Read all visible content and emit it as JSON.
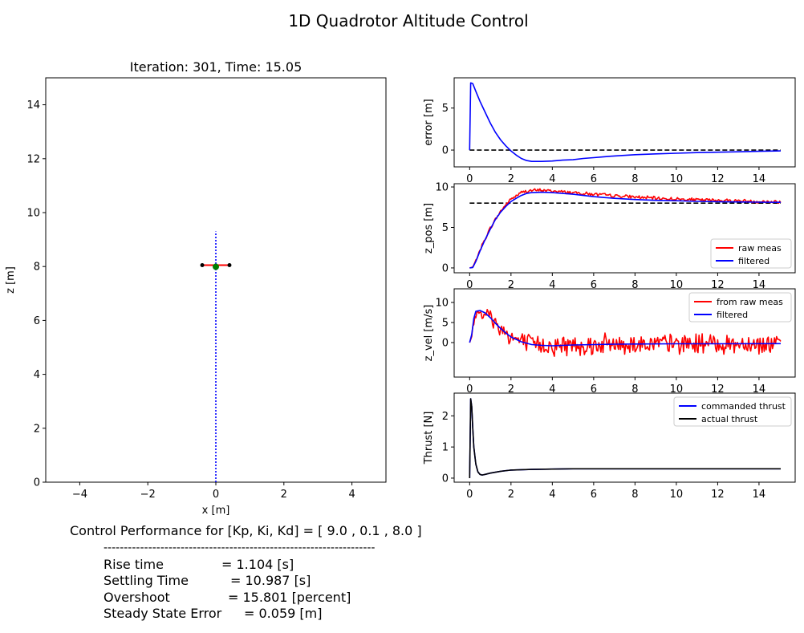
{
  "figure_title": "1D Quadrotor Altitude Control",
  "performance": {
    "header": "Control Performance for [Kp, Ki, Kd] = [ 9.0 , 0.1 , 8.0 ]",
    "separator": "-------------------------------------------------------------------",
    "rows": [
      {
        "label": "Rise time",
        "value": "= 1.104 [s]"
      },
      {
        "label": "Settling Time",
        "value": "= 10.987 [s]"
      },
      {
        "label": "Overshoot",
        "value": "= 15.801 [percent]"
      },
      {
        "label": "Steady State Error",
        "value": "= 0.059 [m]"
      }
    ]
  },
  "chart_data": [
    {
      "id": "anim",
      "type": "scatter",
      "title": "Iteration: 301, Time: 15.05",
      "xlabel": "x [m]",
      "ylabel": "z [m]",
      "xlim": [
        -5,
        5
      ],
      "ylim": [
        0,
        15
      ],
      "xticks": [
        -4,
        -2,
        0,
        2,
        4
      ],
      "yticks": [
        0,
        2,
        4,
        6,
        8,
        10,
        12,
        14
      ],
      "quadrotor": {
        "x": 0,
        "z": 8.05,
        "arm_half_width": 0.4
      },
      "trajectory": {
        "x": 0,
        "z_from": 0,
        "z_to": 9.3
      },
      "colors": {
        "arm": "#ff0000",
        "motors": "#000000",
        "body": "#008000",
        "trajectory": "#0000ff"
      }
    },
    {
      "id": "error",
      "type": "line",
      "ylabel": "error [m]",
      "xlim": [
        -0.75,
        15.75
      ],
      "ylim": [
        -2.0,
        8.6
      ],
      "xticks": [
        0,
        2,
        4,
        6,
        8,
        10,
        12,
        14
      ],
      "yticks": [
        0,
        5
      ],
      "reference": {
        "value": 0,
        "color": "#000000",
        "style": "dashed"
      },
      "series": [
        {
          "color": "#0000ff",
          "x": [
            0,
            0.05,
            0.15,
            0.3,
            0.5,
            0.75,
            1.0,
            1.25,
            1.5,
            1.75,
            2.0,
            2.25,
            2.5,
            2.75,
            3.0,
            3.5,
            4.0,
            4.5,
            5.0,
            5.5,
            6.0,
            6.5,
            7.0,
            8.0,
            9.0,
            10.0,
            11.0,
            12.0,
            13.0,
            14.0,
            15.05
          ],
          "y": [
            0,
            8.0,
            7.9,
            7.0,
            5.8,
            4.5,
            3.2,
            2.1,
            1.2,
            0.5,
            -0.1,
            -0.6,
            -1.0,
            -1.25,
            -1.35,
            -1.35,
            -1.3,
            -1.2,
            -1.15,
            -1.0,
            -0.9,
            -0.8,
            -0.7,
            -0.55,
            -0.45,
            -0.38,
            -0.3,
            -0.25,
            -0.2,
            -0.15,
            -0.1
          ]
        }
      ]
    },
    {
      "id": "zpos",
      "type": "line",
      "ylabel": "z_pos [m]",
      "xlim": [
        -0.75,
        15.75
      ],
      "ylim": [
        -0.6,
        10.4
      ],
      "xticks": [
        0,
        2,
        4,
        6,
        8,
        10,
        12,
        14
      ],
      "yticks": [
        0,
        5,
        10
      ],
      "reference": {
        "value": 8.0,
        "color": "#000000",
        "style": "dashed"
      },
      "legend": {
        "position": "lower-right",
        "entries": [
          "raw meas",
          "filtered"
        ]
      },
      "series": [
        {
          "name": "raw meas",
          "color": "#ff0000",
          "noise": 0.25,
          "x": [
            0,
            0.15,
            0.3,
            0.5,
            0.75,
            1.0,
            1.25,
            1.5,
            1.75,
            2.0,
            2.25,
            2.5,
            2.75,
            3.0,
            3.5,
            4.0,
            4.5,
            5.0,
            5.5,
            6.0,
            6.5,
            7.0,
            8.0,
            9.0,
            10.0,
            11.0,
            12.0,
            13.0,
            14.0,
            15.05
          ],
          "y": [
            0,
            0.1,
            0.9,
            2.2,
            3.6,
            4.9,
            6.0,
            7.0,
            7.8,
            8.5,
            8.9,
            9.3,
            9.5,
            9.55,
            9.6,
            9.5,
            9.4,
            9.3,
            9.2,
            9.1,
            9.0,
            8.9,
            8.75,
            8.6,
            8.5,
            8.4,
            8.35,
            8.3,
            8.2,
            8.15
          ]
        },
        {
          "name": "filtered",
          "color": "#0000ff",
          "x": [
            0,
            0.15,
            0.3,
            0.5,
            0.75,
            1.0,
            1.25,
            1.5,
            1.75,
            2.0,
            2.25,
            2.5,
            2.75,
            3.0,
            3.5,
            4.0,
            4.5,
            5.0,
            5.5,
            6.0,
            6.5,
            7.0,
            8.0,
            9.0,
            10.0,
            11.0,
            12.0,
            13.0,
            14.0,
            15.05
          ],
          "y": [
            0,
            0.05,
            0.8,
            2.1,
            3.5,
            4.8,
            6.0,
            6.9,
            7.6,
            8.2,
            8.6,
            8.95,
            9.2,
            9.3,
            9.35,
            9.3,
            9.2,
            9.1,
            8.95,
            8.8,
            8.7,
            8.6,
            8.45,
            8.35,
            8.3,
            8.22,
            8.18,
            8.15,
            8.12,
            8.1
          ]
        }
      ]
    },
    {
      "id": "zvel",
      "type": "line",
      "ylabel": "z_vel [m/s]",
      "xlim": [
        -0.75,
        15.75
      ],
      "ylim": [
        -8.6,
        13.4
      ],
      "xticks": [
        0,
        2,
        4,
        6,
        8,
        10,
        12,
        14
      ],
      "yticks": [
        0,
        5,
        10
      ],
      "legend": {
        "position": "top-right",
        "entries": [
          "from raw meas",
          "filtered"
        ]
      },
      "series": [
        {
          "name": "from raw meas",
          "color": "#ff0000",
          "noise": 3.0,
          "x": [
            0,
            0.1,
            0.2,
            0.3,
            0.5,
            0.75,
            1.0,
            1.25,
            1.5,
            1.75,
            2.0,
            2.5,
            3.0,
            3.5,
            4.0,
            5.0,
            6.0,
            7.0,
            8.0,
            10.0,
            12.0,
            15.05
          ],
          "y": [
            0,
            1.5,
            5.0,
            7.5,
            8.0,
            7.4,
            6.2,
            4.8,
            3.5,
            2.4,
            1.4,
            0.2,
            -0.5,
            -0.7,
            -0.8,
            -0.6,
            -0.5,
            -0.4,
            -0.35,
            -0.3,
            -0.3,
            -0.25
          ]
        },
        {
          "name": "filtered",
          "color": "#0000ff",
          "x": [
            0,
            0.1,
            0.2,
            0.3,
            0.5,
            0.75,
            1.0,
            1.25,
            1.5,
            1.75,
            2.0,
            2.5,
            3.0,
            3.5,
            4.0,
            5.0,
            6.0,
            7.0,
            8.0,
            10.0,
            12.0,
            15.05
          ],
          "y": [
            0,
            2.0,
            6.0,
            7.8,
            8.0,
            7.4,
            6.2,
            4.8,
            3.5,
            2.4,
            1.4,
            0.2,
            -0.5,
            -0.7,
            -0.8,
            -0.6,
            -0.5,
            -0.4,
            -0.35,
            -0.3,
            -0.3,
            -0.25
          ]
        }
      ]
    },
    {
      "id": "thrust",
      "type": "line",
      "ylabel": "Thrust [N]",
      "xlim": [
        -0.75,
        15.75
      ],
      "ylim": [
        -0.13,
        2.73
      ],
      "xticks": [
        0,
        2,
        4,
        6,
        8,
        10,
        12,
        14
      ],
      "yticks": [
        0,
        1,
        2
      ],
      "legend": {
        "position": "top-right",
        "entries": [
          "commanded thrust",
          "actual thrust"
        ]
      },
      "series": [
        {
          "name": "commanded thrust",
          "color": "#0000ff",
          "x": [
            0,
            0.05,
            0.1,
            0.15,
            0.2,
            0.3,
            0.4,
            0.5,
            0.6,
            0.75,
            1.0,
            1.5,
            2.0,
            3.0,
            4.0,
            5.0,
            6.0,
            8.0,
            10.0,
            12.0,
            15.05
          ],
          "y": [
            0,
            2.55,
            2.3,
            1.6,
            1.0,
            0.45,
            0.2,
            0.12,
            0.1,
            0.12,
            0.16,
            0.22,
            0.26,
            0.28,
            0.29,
            0.3,
            0.3,
            0.3,
            0.3,
            0.3,
            0.3
          ]
        },
        {
          "name": "actual thrust",
          "color": "#000000",
          "x": [
            0,
            0.05,
            0.1,
            0.15,
            0.2,
            0.3,
            0.4,
            0.5,
            0.6,
            0.75,
            1.0,
            1.5,
            2.0,
            3.0,
            4.0,
            5.0,
            6.0,
            8.0,
            10.0,
            12.0,
            15.05
          ],
          "y": [
            0,
            2.55,
            2.3,
            1.6,
            1.0,
            0.45,
            0.2,
            0.12,
            0.1,
            0.12,
            0.16,
            0.22,
            0.26,
            0.28,
            0.29,
            0.3,
            0.3,
            0.3,
            0.3,
            0.3,
            0.3
          ]
        }
      ]
    }
  ]
}
